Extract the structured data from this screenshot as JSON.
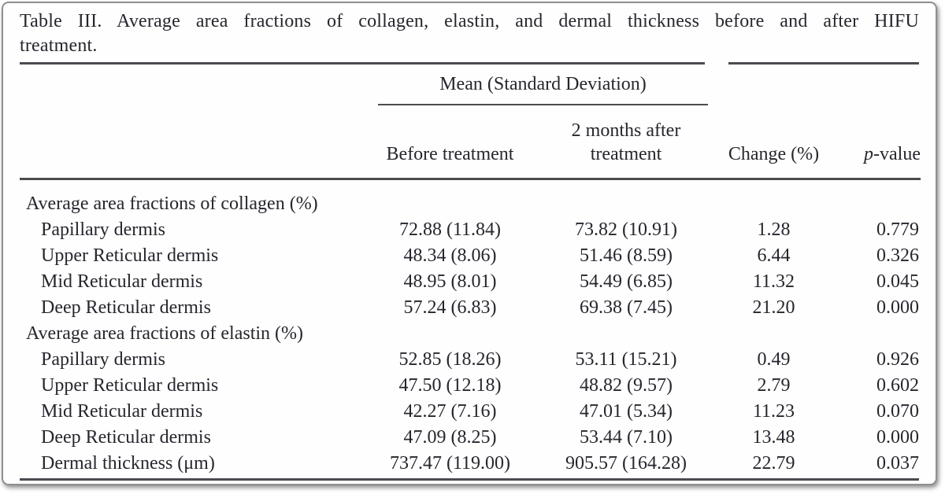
{
  "table": {
    "title_line1": "Table III. Average area fractions of collagen, elastin, and dermal thickness before and after HIFU",
    "title_line2": "treatment.",
    "header": {
      "spanner": "Mean (Standard Deviation)",
      "before": "Before treatment",
      "after": "2 months after treatment",
      "change": "Change (%)",
      "p_italic": "p",
      "p_rest": "-value"
    },
    "sections": [
      {
        "label": "Average area fractions of collagen (%)",
        "rows": [
          {
            "label": "Papillary dermis",
            "before": "72.88 (11.84)",
            "after": "73.82 (10.91)",
            "change": "1.28",
            "p": "0.779"
          },
          {
            "label": "Upper Reticular dermis",
            "before": "48.34 (8.06)",
            "after": "51.46 (8.59)",
            "change": "6.44",
            "p": "0.326"
          },
          {
            "label": "Mid Reticular dermis",
            "before": "48.95 (8.01)",
            "after": "54.49 (6.85)",
            "change": "11.32",
            "p": "0.045"
          },
          {
            "label": "Deep Reticular dermis",
            "before": "57.24 (6.83)",
            "after": "69.38 (7.45)",
            "change": "21.20",
            "p": "0.000"
          }
        ]
      },
      {
        "label": "Average area fractions of elastin (%)",
        "rows": [
          {
            "label": "Papillary dermis",
            "before": "52.85 (18.26)",
            "after": "53.11 (15.21)",
            "change": "0.49",
            "p": "0.926"
          },
          {
            "label": "Upper Reticular dermis",
            "before": "47.50 (12.18)",
            "after": "48.82 (9.57)",
            "change": "2.79",
            "p": "0.602"
          },
          {
            "label": "Mid Reticular dermis",
            "before": "42.27 (7.16)",
            "after": "47.01 (5.34)",
            "change": "11.23",
            "p": "0.070"
          },
          {
            "label": "Deep Reticular dermis",
            "before": "47.09 (8.25)",
            "after": "53.44 (7.10)",
            "change": "13.48",
            "p": "0.000"
          },
          {
            "label": "Dermal thickness (μm)",
            "before": "737.47 (119.00)",
            "after": "905.57 (164.28)",
            "change": "22.79",
            "p": "0.037"
          }
        ]
      }
    ]
  }
}
